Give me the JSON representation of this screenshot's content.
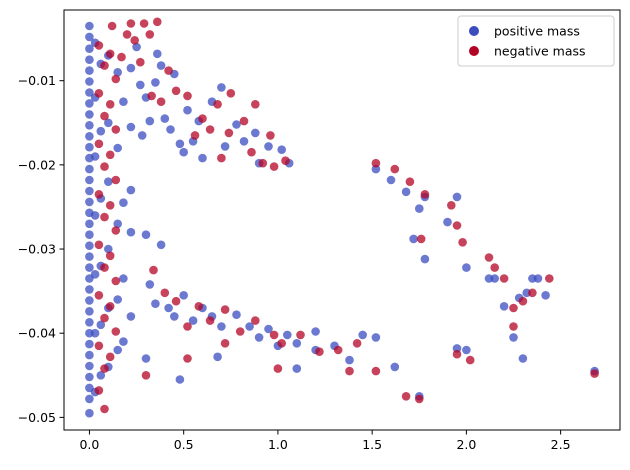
{
  "chart_data": {
    "type": "scatter",
    "title": "",
    "xlabel": "",
    "ylabel": "",
    "xlim": [
      -0.135,
      2.815
    ],
    "ylim": [
      -0.0515,
      -0.0016
    ],
    "grid": false,
    "legend_position": "top-right",
    "x_ticks": [
      {
        "value": 0.0,
        "label": "0.0"
      },
      {
        "value": 0.5,
        "label": "0.5"
      },
      {
        "value": 1.0,
        "label": "1.0"
      },
      {
        "value": 1.5,
        "label": "1.5"
      },
      {
        "value": 2.0,
        "label": "2.0"
      },
      {
        "value": 2.5,
        "label": "2.5"
      }
    ],
    "y_ticks": [
      {
        "value": -0.01,
        "label": "−0.01"
      },
      {
        "value": -0.02,
        "label": "−0.02"
      },
      {
        "value": -0.03,
        "label": "−0.03"
      },
      {
        "value": -0.04,
        "label": "−0.04"
      },
      {
        "value": -0.05,
        "label": "−0.05"
      }
    ],
    "series": [
      {
        "name": "positive mass",
        "color": "#3b4cc0",
        "points": [
          [
            0.0,
            -0.0035
          ],
          [
            0.0,
            -0.0048
          ],
          [
            0.0,
            -0.0062
          ],
          [
            0.0,
            -0.0075
          ],
          [
            0.0,
            -0.0088
          ],
          [
            0.0,
            -0.0101
          ],
          [
            0.0,
            -0.0114
          ],
          [
            0.0,
            -0.0127
          ],
          [
            0.0,
            -0.014
          ],
          [
            0.0,
            -0.0153
          ],
          [
            0.0,
            -0.0166
          ],
          [
            0.0,
            -0.0179
          ],
          [
            0.0,
            -0.0192
          ],
          [
            0.0,
            -0.0205
          ],
          [
            0.0,
            -0.0218
          ],
          [
            0.0,
            -0.0231
          ],
          [
            0.0,
            -0.0244
          ],
          [
            0.0,
            -0.0257
          ],
          [
            0.0,
            -0.027
          ],
          [
            0.0,
            -0.0283
          ],
          [
            0.0,
            -0.0296
          ],
          [
            0.0,
            -0.0309
          ],
          [
            0.0,
            -0.0322
          ],
          [
            0.0,
            -0.0335
          ],
          [
            0.0,
            -0.0348
          ],
          [
            0.0,
            -0.0361
          ],
          [
            0.0,
            -0.0374
          ],
          [
            0.0,
            -0.0387
          ],
          [
            0.0,
            -0.04
          ],
          [
            0.0,
            -0.0413
          ],
          [
            0.0,
            -0.0426
          ],
          [
            0.0,
            -0.0439
          ],
          [
            0.0,
            -0.0452
          ],
          [
            0.0,
            -0.0465
          ],
          [
            0.0,
            -0.0478
          ],
          [
            0.0,
            -0.0495
          ],
          [
            0.03,
            -0.0055
          ],
          [
            0.03,
            -0.012
          ],
          [
            0.03,
            -0.019
          ],
          [
            0.03,
            -0.026
          ],
          [
            0.03,
            -0.033
          ],
          [
            0.03,
            -0.04
          ],
          [
            0.03,
            -0.047
          ],
          [
            0.06,
            -0.008
          ],
          [
            0.06,
            -0.016
          ],
          [
            0.06,
            -0.024
          ],
          [
            0.06,
            -0.032
          ],
          [
            0.06,
            -0.039
          ],
          [
            0.06,
            -0.045
          ],
          [
            0.1,
            -0.007
          ],
          [
            0.1,
            -0.015
          ],
          [
            0.1,
            -0.022
          ],
          [
            0.1,
            -0.03
          ],
          [
            0.1,
            -0.037
          ],
          [
            0.1,
            -0.044
          ],
          [
            0.15,
            -0.009
          ],
          [
            0.15,
            -0.018
          ],
          [
            0.15,
            -0.027
          ],
          [
            0.15,
            -0.036
          ],
          [
            0.15,
            -0.042
          ],
          [
            0.18,
            -0.0125
          ],
          [
            0.18,
            -0.0245
          ],
          [
            0.18,
            -0.0335
          ],
          [
            0.18,
            -0.041
          ],
          [
            0.22,
            -0.0085
          ],
          [
            0.22,
            -0.0155
          ],
          [
            0.22,
            -0.023
          ],
          [
            0.22,
            -0.028
          ],
          [
            0.22,
            -0.038
          ],
          [
            0.25,
            -0.006
          ],
          [
            0.27,
            -0.0105
          ],
          [
            0.28,
            -0.0165
          ],
          [
            0.3,
            -0.012
          ],
          [
            0.32,
            -0.0148
          ],
          [
            0.35,
            -0.0102
          ],
          [
            0.36,
            -0.0068
          ],
          [
            0.38,
            -0.0082
          ],
          [
            0.4,
            -0.0145
          ],
          [
            0.43,
            -0.0158
          ],
          [
            0.45,
            -0.0092
          ],
          [
            0.48,
            -0.0175
          ],
          [
            0.5,
            -0.0185
          ],
          [
            0.52,
            -0.0135
          ],
          [
            0.55,
            -0.0172
          ],
          [
            0.58,
            -0.0148
          ],
          [
            0.6,
            -0.0192
          ],
          [
            0.65,
            -0.0125
          ],
          [
            0.7,
            -0.0108
          ],
          [
            0.72,
            -0.0178
          ],
          [
            0.78,
            -0.0152
          ],
          [
            0.82,
            -0.0172
          ],
          [
            0.88,
            -0.0162
          ],
          [
            0.9,
            -0.0198
          ],
          [
            0.95,
            -0.0178
          ],
          [
            1.02,
            -0.0182
          ],
          [
            1.06,
            -0.0198
          ],
          [
            0.3,
            -0.0283
          ],
          [
            0.32,
            -0.0342
          ],
          [
            0.35,
            -0.0365
          ],
          [
            0.38,
            -0.0295
          ],
          [
            0.42,
            -0.037
          ],
          [
            0.45,
            -0.038
          ],
          [
            0.5,
            -0.0355
          ],
          [
            0.55,
            -0.0385
          ],
          [
            0.6,
            -0.037
          ],
          [
            0.65,
            -0.038
          ],
          [
            0.7,
            -0.0392
          ],
          [
            0.78,
            -0.0378
          ],
          [
            0.85,
            -0.0392
          ],
          [
            0.9,
            -0.0405
          ],
          [
            0.95,
            -0.0395
          ],
          [
            1.0,
            -0.0415
          ],
          [
            1.05,
            -0.0402
          ],
          [
            1.1,
            -0.0412
          ],
          [
            1.2,
            -0.0398
          ],
          [
            1.3,
            -0.0415
          ],
          [
            1.38,
            -0.0432
          ],
          [
            1.45,
            -0.0402
          ],
          [
            1.52,
            -0.0405
          ],
          [
            0.3,
            -0.043
          ],
          [
            0.48,
            -0.0455
          ],
          [
            0.68,
            -0.0428
          ],
          [
            1.1,
            -0.0442
          ],
          [
            1.2,
            -0.042
          ],
          [
            1.52,
            -0.0205
          ],
          [
            1.6,
            -0.0218
          ],
          [
            1.68,
            -0.0232
          ],
          [
            1.75,
            -0.0252
          ],
          [
            1.78,
            -0.0238
          ],
          [
            1.9,
            -0.0268
          ],
          [
            1.72,
            -0.0288
          ],
          [
            1.78,
            -0.0312
          ],
          [
            1.95,
            -0.0238
          ],
          [
            2.0,
            -0.0322
          ],
          [
            2.12,
            -0.0335
          ],
          [
            2.15,
            -0.0335
          ],
          [
            2.2,
            -0.0368
          ],
          [
            2.25,
            -0.0405
          ],
          [
            2.28,
            -0.0358
          ],
          [
            2.32,
            -0.0352
          ],
          [
            2.35,
            -0.0335
          ],
          [
            2.38,
            -0.0335
          ],
          [
            2.42,
            -0.0355
          ],
          [
            1.95,
            -0.0418
          ],
          [
            2.0,
            -0.042
          ],
          [
            2.3,
            -0.043
          ],
          [
            1.62,
            -0.044
          ],
          [
            1.75,
            -0.0475
          ],
          [
            2.68,
            -0.0445
          ]
        ]
      },
      {
        "name": "negative mass",
        "color": "#b40426",
        "points": [
          [
            0.05,
            -0.0058
          ],
          [
            0.05,
            -0.0115
          ],
          [
            0.05,
            -0.0175
          ],
          [
            0.05,
            -0.0235
          ],
          [
            0.05,
            -0.0295
          ],
          [
            0.05,
            -0.0355
          ],
          [
            0.05,
            -0.0415
          ],
          [
            0.05,
            -0.0468
          ],
          [
            0.08,
            -0.0082
          ],
          [
            0.08,
            -0.0142
          ],
          [
            0.08,
            -0.0202
          ],
          [
            0.08,
            -0.0262
          ],
          [
            0.08,
            -0.0322
          ],
          [
            0.08,
            -0.0382
          ],
          [
            0.08,
            -0.0442
          ],
          [
            0.08,
            -0.049
          ],
          [
            0.11,
            -0.0068
          ],
          [
            0.11,
            -0.0128
          ],
          [
            0.11,
            -0.0188
          ],
          [
            0.11,
            -0.0248
          ],
          [
            0.11,
            -0.0308
          ],
          [
            0.11,
            -0.0368
          ],
          [
            0.11,
            -0.0428
          ],
          [
            0.14,
            -0.0098
          ],
          [
            0.14,
            -0.0158
          ],
          [
            0.14,
            -0.0218
          ],
          [
            0.14,
            -0.0278
          ],
          [
            0.14,
            -0.0338
          ],
          [
            0.14,
            -0.0398
          ],
          [
            0.12,
            -0.0035
          ],
          [
            0.17,
            -0.0072
          ],
          [
            0.2,
            -0.0045
          ],
          [
            0.22,
            -0.0032
          ],
          [
            0.24,
            -0.0052
          ],
          [
            0.27,
            -0.0078
          ],
          [
            0.29,
            -0.0032
          ],
          [
            0.32,
            -0.0045
          ],
          [
            0.36,
            -0.003
          ],
          [
            0.33,
            -0.0118
          ],
          [
            0.38,
            -0.0125
          ],
          [
            0.42,
            -0.0088
          ],
          [
            0.46,
            -0.0112
          ],
          [
            0.52,
            -0.0118
          ],
          [
            0.56,
            -0.0165
          ],
          [
            0.6,
            -0.0145
          ],
          [
            0.64,
            -0.0158
          ],
          [
            0.68,
            -0.0128
          ],
          [
            0.7,
            -0.0192
          ],
          [
            0.74,
            -0.0162
          ],
          [
            0.82,
            -0.0148
          ],
          [
            0.86,
            -0.0185
          ],
          [
            0.92,
            -0.0198
          ],
          [
            0.96,
            -0.0165
          ],
          [
            0.98,
            -0.0202
          ],
          [
            1.04,
            -0.0195
          ],
          [
            0.75,
            -0.0115
          ],
          [
            0.88,
            -0.0128
          ],
          [
            0.34,
            -0.0325
          ],
          [
            0.4,
            -0.0352
          ],
          [
            0.46,
            -0.0362
          ],
          [
            0.52,
            -0.0392
          ],
          [
            0.58,
            -0.0368
          ],
          [
            0.64,
            -0.0385
          ],
          [
            0.72,
            -0.0372
          ],
          [
            0.8,
            -0.0398
          ],
          [
            0.88,
            -0.0385
          ],
          [
            0.98,
            -0.0402
          ],
          [
            1.02,
            -0.0412
          ],
          [
            1.12,
            -0.0402
          ],
          [
            1.22,
            -0.0422
          ],
          [
            1.32,
            -0.042
          ],
          [
            1.42,
            -0.0412
          ],
          [
            0.3,
            -0.045
          ],
          [
            0.52,
            -0.043
          ],
          [
            0.72,
            -0.0412
          ],
          [
            1.0,
            -0.0442
          ],
          [
            1.38,
            -0.0445
          ],
          [
            1.52,
            -0.0445
          ],
          [
            1.52,
            -0.0198
          ],
          [
            1.62,
            -0.0205
          ],
          [
            1.7,
            -0.022
          ],
          [
            1.78,
            -0.0235
          ],
          [
            1.92,
            -0.0248
          ],
          [
            1.95,
            -0.0272
          ],
          [
            1.98,
            -0.0292
          ],
          [
            1.76,
            -0.0288
          ],
          [
            2.12,
            -0.031
          ],
          [
            2.15,
            -0.0322
          ],
          [
            2.2,
            -0.0335
          ],
          [
            2.25,
            -0.037
          ],
          [
            2.3,
            -0.0362
          ],
          [
            2.35,
            -0.0352
          ],
          [
            2.44,
            -0.0335
          ],
          [
            2.25,
            -0.0392
          ],
          [
            2.02,
            -0.0432
          ],
          [
            1.95,
            -0.0425
          ],
          [
            1.75,
            -0.0478
          ],
          [
            1.68,
            -0.0475
          ],
          [
            2.68,
            -0.0448
          ]
        ]
      }
    ]
  }
}
